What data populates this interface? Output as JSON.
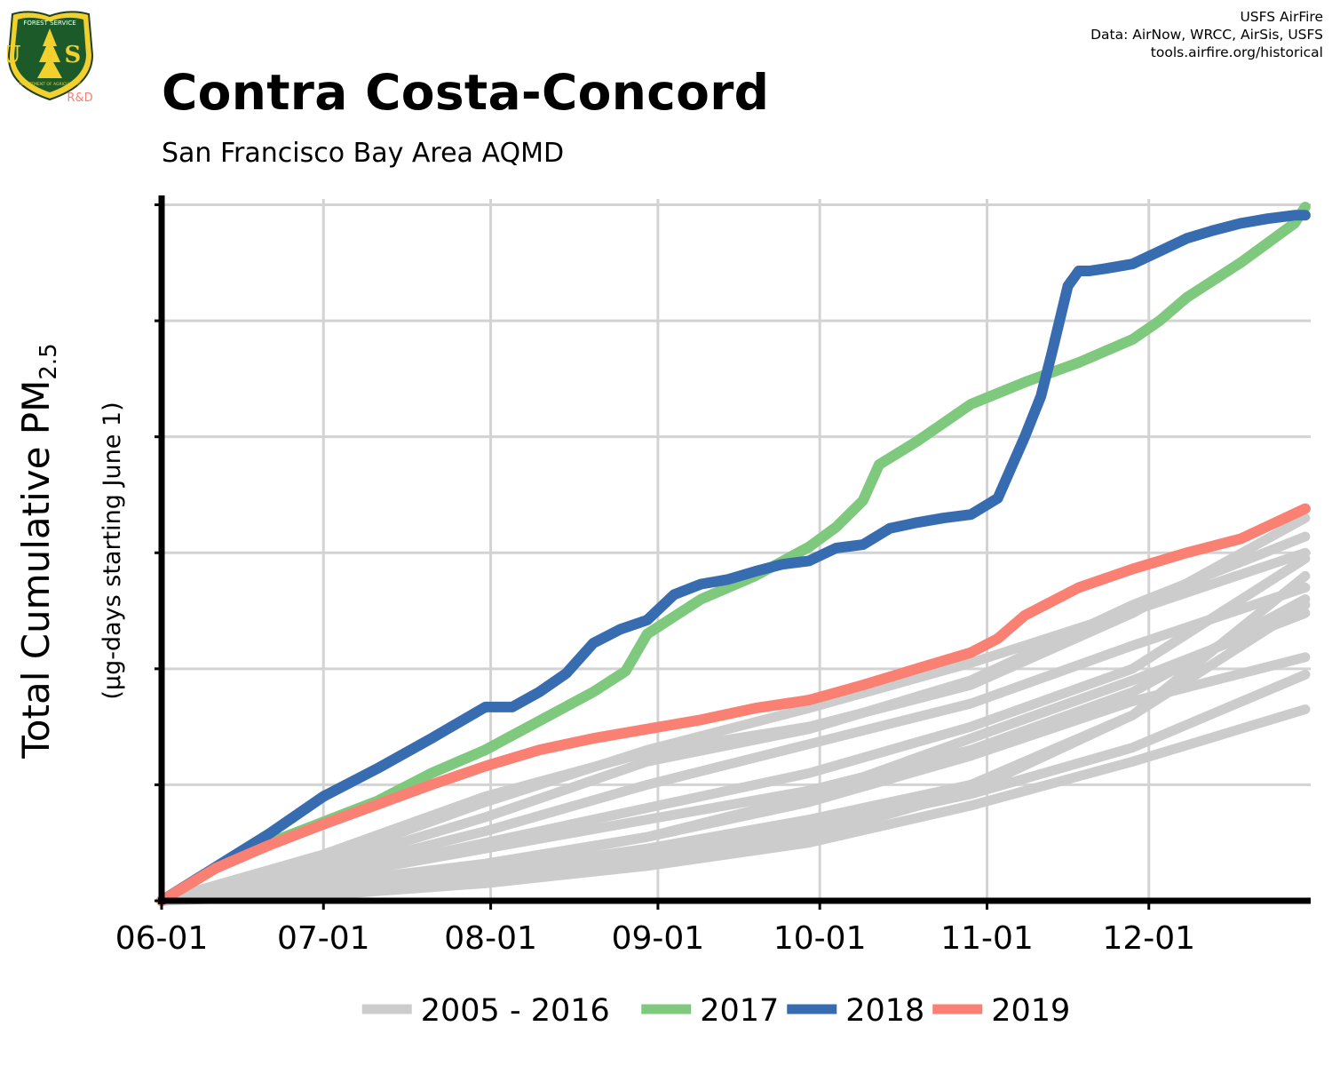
{
  "header": {
    "title": "Contra Costa-Concord",
    "subtitle": "San Francisco Bay Area AQMD",
    "credits": [
      "USFS AirFire",
      "Data: AirNow, WRCC, AirSis, USFS",
      "tools.airfire.org/historical"
    ]
  },
  "logo": {
    "top_text": "FOREST SERVICE",
    "letters": "U S",
    "bottom_text": "DEPARTMENT OF AGRICULTURE",
    "rd": "R&D",
    "icon": "usfs-shield-icon"
  },
  "colors": {
    "history": "#cccccc",
    "y2017": "#7fc97f",
    "y2018": "#386cb0",
    "y2019": "#f98072",
    "grid": "#d3d3d3",
    "axis": "#000000"
  },
  "chart_data": {
    "type": "line",
    "title": "Contra Costa-Concord",
    "subtitle": "San Francisco Bay Area AQMD",
    "ylabel": "Total Cumulative PM",
    "ylabel_sub": "2.5",
    "ylabel2": "(µg-days starting June 1)",
    "xlabel": "",
    "x_ticks": [
      "06-01",
      "07-01",
      "08-01",
      "09-01",
      "10-01",
      "11-01",
      "12-01"
    ],
    "x_tick_days": [
      0,
      30,
      61,
      92,
      122,
      153,
      183
    ],
    "xlim": [
      0,
      213
    ],
    "y_tick_labels_visible": false,
    "ylim": [
      0,
      6.05
    ],
    "y_gridlines": [
      0,
      1,
      2,
      3,
      4,
      5,
      6
    ],
    "legend_position": "bottom",
    "legend": [
      {
        "label": "2005 - 2016",
        "color": "#cccccc"
      },
      {
        "label": "2017",
        "color": "#7fc97f"
      },
      {
        "label": "2018",
        "color": "#386cb0"
      },
      {
        "label": "2019",
        "color": "#f98072"
      }
    ],
    "x_unit_note": "x values are days since June 1",
    "series": [
      {
        "name": "2017",
        "color": "#7fc97f",
        "x": [
          0,
          10,
          20,
          30,
          40,
          50,
          60,
          70,
          80,
          86,
          90,
          100,
          110,
          120,
          125,
          130,
          133,
          140,
          150,
          160,
          170,
          180,
          185,
          190,
          200,
          205,
          210,
          212
        ],
        "y": [
          0,
          0.28,
          0.5,
          0.68,
          0.86,
          1.1,
          1.3,
          1.55,
          1.8,
          1.98,
          2.3,
          2.6,
          2.8,
          3.05,
          3.22,
          3.45,
          3.76,
          3.96,
          4.28,
          4.47,
          4.64,
          4.84,
          5.0,
          5.2,
          5.5,
          5.67,
          5.84,
          5.98
        ]
      },
      {
        "name": "2018",
        "color": "#386cb0",
        "x": [
          0,
          10,
          20,
          30,
          40,
          50,
          60,
          65,
          70,
          75,
          80,
          85,
          90,
          95,
          100,
          105,
          110,
          115,
          120,
          125,
          130,
          135,
          140,
          145,
          150,
          155,
          160,
          163,
          165,
          168,
          170,
          172,
          175,
          180,
          185,
          190,
          195,
          200,
          205,
          210,
          212
        ],
        "y": [
          0,
          0.29,
          0.58,
          0.9,
          1.14,
          1.4,
          1.67,
          1.67,
          1.8,
          1.96,
          2.22,
          2.34,
          2.42,
          2.64,
          2.73,
          2.77,
          2.84,
          2.9,
          2.93,
          3.04,
          3.07,
          3.21,
          3.26,
          3.3,
          3.33,
          3.47,
          4.0,
          4.35,
          4.72,
          5.3,
          5.43,
          5.43,
          5.45,
          5.49,
          5.6,
          5.71,
          5.78,
          5.84,
          5.88,
          5.91,
          5.91
        ]
      },
      {
        "name": "2019",
        "color": "#f98072",
        "x": [
          0,
          10,
          20,
          30,
          40,
          50,
          60,
          70,
          80,
          90,
          100,
          110,
          120,
          130,
          140,
          150,
          155,
          160,
          170,
          180,
          190,
          200,
          212
        ],
        "y": [
          0,
          0.28,
          0.48,
          0.66,
          0.83,
          1.0,
          1.16,
          1.3,
          1.4,
          1.48,
          1.56,
          1.66,
          1.73,
          1.86,
          2.0,
          2.14,
          2.26,
          2.46,
          2.7,
          2.86,
          3.0,
          3.12,
          3.38
        ]
      },
      {
        "name": "2005 - 2016",
        "color": "#cccccc",
        "x": [
          0,
          30,
          60,
          90,
          120,
          150,
          180,
          212
        ],
        "y": [
          0,
          0.25,
          0.6,
          1.0,
          1.35,
          1.7,
          2.2,
          2.7
        ]
      },
      {
        "name": "2005 - 2016",
        "color": "#cccccc",
        "x": [
          0,
          30,
          60,
          90,
          120,
          150,
          180,
          212
        ],
        "y": [
          0,
          0.35,
          0.85,
          1.3,
          1.66,
          2.05,
          2.5,
          3.0
        ]
      },
      {
        "name": "2005 - 2016",
        "color": "#cccccc",
        "x": [
          0,
          30,
          60,
          90,
          120,
          150,
          180,
          212
        ],
        "y": [
          0,
          0.2,
          0.45,
          0.7,
          0.95,
          1.3,
          1.8,
          2.6
        ]
      },
      {
        "name": "2005 - 2016",
        "color": "#cccccc",
        "x": [
          0,
          30,
          60,
          90,
          120,
          150,
          180,
          212
        ],
        "y": [
          0,
          0.1,
          0.25,
          0.45,
          0.7,
          1.0,
          1.6,
          2.8
        ]
      },
      {
        "name": "2005 - 2016",
        "color": "#cccccc",
        "x": [
          0,
          30,
          60,
          90,
          120,
          150,
          180,
          212
        ],
        "y": [
          0,
          0.15,
          0.32,
          0.55,
          0.85,
          1.25,
          1.72,
          2.1
        ]
      },
      {
        "name": "2005 - 2016",
        "color": "#cccccc",
        "x": [
          0,
          30,
          60,
          90,
          120,
          150,
          180,
          212
        ],
        "y": [
          0,
          0.08,
          0.2,
          0.35,
          0.55,
          0.95,
          1.6,
          2.55
        ]
      },
      {
        "name": "2005 - 2016",
        "color": "#cccccc",
        "x": [
          0,
          30,
          60,
          90,
          120,
          150,
          180,
          212
        ],
        "y": [
          0,
          0.3,
          0.72,
          1.2,
          1.48,
          1.9,
          2.55,
          3.14
        ]
      },
      {
        "name": "2005 - 2016",
        "color": "#cccccc",
        "x": [
          0,
          30,
          60,
          90,
          120,
          150,
          180,
          212
        ],
        "y": [
          0,
          0.12,
          0.3,
          0.55,
          0.9,
          1.4,
          1.9,
          2.48
        ]
      },
      {
        "name": "2005 - 2016",
        "color": "#cccccc",
        "x": [
          0,
          30,
          60,
          90,
          120,
          150,
          180,
          212
        ],
        "y": [
          0,
          0.05,
          0.15,
          0.3,
          0.5,
          0.82,
          1.2,
          1.65
        ]
      },
      {
        "name": "2005 - 2016",
        "color": "#cccccc",
        "x": [
          0,
          30,
          60,
          90,
          120,
          150,
          180,
          212
        ],
        "y": [
          0,
          0.4,
          0.9,
          1.28,
          1.5,
          1.86,
          2.48,
          3.3
        ]
      },
      {
        "name": "2005 - 2016",
        "color": "#cccccc",
        "x": [
          0,
          30,
          60,
          90,
          120,
          150,
          180,
          212
        ],
        "y": [
          0,
          0.2,
          0.5,
          0.8,
          1.1,
          1.5,
          2.0,
          2.95
        ]
      },
      {
        "name": "2005 - 2016",
        "color": "#cccccc",
        "x": [
          0,
          30,
          60,
          90,
          120,
          150,
          180,
          212
        ],
        "y": [
          0,
          0.1,
          0.22,
          0.4,
          0.62,
          0.92,
          1.32,
          1.95
        ]
      }
    ]
  }
}
